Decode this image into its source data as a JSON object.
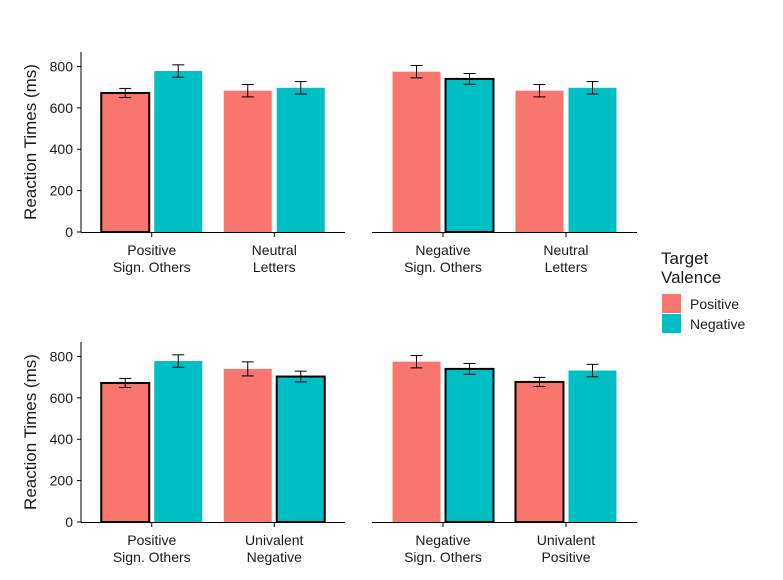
{
  "colors": {
    "positive": "#F8766D",
    "negative": "#00BFC4",
    "ink": "#000000"
  },
  "legend": {
    "title_line1": "Target",
    "title_line2": "Valence",
    "items": [
      {
        "label": "Positive",
        "color_key": "positive"
      },
      {
        "label": "Negative",
        "color_key": "negative"
      }
    ]
  },
  "chart_data": [
    {
      "type": "bar",
      "ylabel": "Reaction Times (ms)",
      "ylim": [
        0,
        870
      ],
      "yticks": [
        0,
        200,
        400,
        600,
        800
      ],
      "show_y_axis": true,
      "categories": [
        [
          "Positive",
          "Sign. Others"
        ],
        [
          "Neutral",
          "Letters"
        ]
      ],
      "series": [
        {
          "name": "Positive",
          "color_key": "positive"
        },
        {
          "name": "Negative",
          "color_key": "negative"
        }
      ],
      "values": [
        [
          672,
          778
        ],
        [
          683,
          697
        ]
      ],
      "errors": [
        [
          22,
          30
        ],
        [
          30,
          30
        ]
      ],
      "outlined": [
        [
          true,
          false
        ],
        [
          false,
          false
        ]
      ]
    },
    {
      "type": "bar",
      "ylabel": "",
      "ylim": [
        0,
        870
      ],
      "yticks": [
        0,
        200,
        400,
        600,
        800
      ],
      "show_y_axis": false,
      "categories": [
        [
          "Negative",
          "Sign. Others"
        ],
        [
          "Neutral",
          "Letters"
        ]
      ],
      "series": [
        {
          "name": "Positive",
          "color_key": "positive"
        },
        {
          "name": "Negative",
          "color_key": "negative"
        }
      ],
      "values": [
        [
          775,
          740
        ],
        [
          683,
          697
        ]
      ],
      "errors": [
        [
          30,
          26
        ],
        [
          30,
          30
        ]
      ],
      "outlined": [
        [
          false,
          true
        ],
        [
          false,
          false
        ]
      ]
    },
    {
      "type": "bar",
      "ylabel": "Reaction Times (ms)",
      "ylim": [
        0,
        870
      ],
      "yticks": [
        0,
        200,
        400,
        600,
        800
      ],
      "show_y_axis": true,
      "categories": [
        [
          "Positive",
          "Sign. Others"
        ],
        [
          "Univalent",
          "Negative"
        ]
      ],
      "series": [
        {
          "name": "Positive",
          "color_key": "positive"
        },
        {
          "name": "Negative",
          "color_key": "negative"
        }
      ],
      "values": [
        [
          672,
          778
        ],
        [
          740,
          703
        ]
      ],
      "errors": [
        [
          22,
          30
        ],
        [
          34,
          26
        ]
      ],
      "outlined": [
        [
          true,
          false
        ],
        [
          false,
          true
        ]
      ]
    },
    {
      "type": "bar",
      "ylabel": "",
      "ylim": [
        0,
        870
      ],
      "yticks": [
        0,
        200,
        400,
        600,
        800
      ],
      "show_y_axis": false,
      "categories": [
        [
          "Negative",
          "Sign. Others"
        ],
        [
          "Univalent",
          "Positive"
        ]
      ],
      "series": [
        {
          "name": "Positive",
          "color_key": "positive"
        },
        {
          "name": "Negative",
          "color_key": "negative"
        }
      ],
      "values": [
        [
          775,
          740
        ],
        [
          677,
          732
        ]
      ],
      "errors": [
        [
          30,
          26
        ],
        [
          22,
          30
        ]
      ],
      "outlined": [
        [
          false,
          true
        ],
        [
          true,
          false
        ]
      ]
    }
  ]
}
